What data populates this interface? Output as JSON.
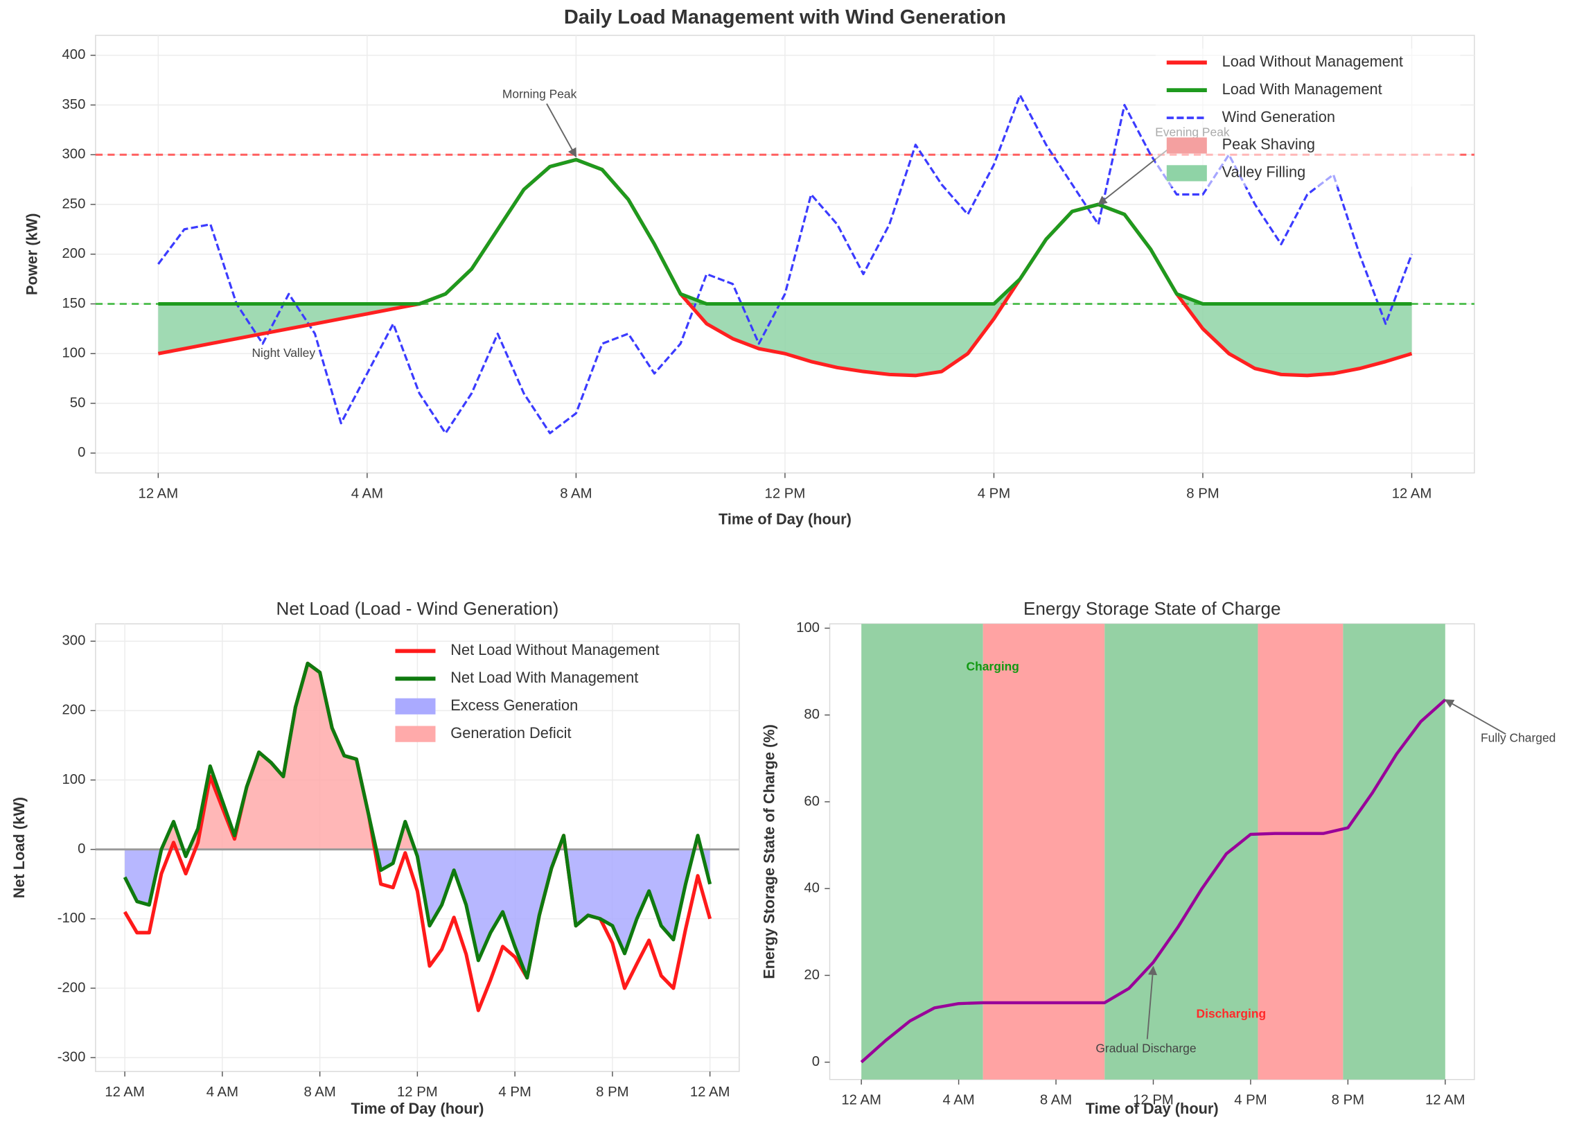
{
  "chart_data": [
    {
      "type": "line",
      "title": "Daily Load Management with Wind Generation",
      "xlabel": "Time of Day (hour)",
      "ylabel": "Power (kW)",
      "x": [
        0,
        0.5,
        1,
        1.5,
        2,
        2.5,
        3,
        3.5,
        4,
        4.5,
        5,
        5.5,
        6,
        6.5,
        7,
        7.5,
        8,
        8.5,
        9,
        9.5,
        10,
        10.5,
        11,
        11.5,
        12,
        12.5,
        13,
        13.5,
        14,
        14.5,
        15,
        15.5,
        16,
        16.5,
        17,
        17.5,
        18,
        18.5,
        19,
        19.5,
        20,
        20.5,
        21,
        21.5,
        22,
        22.5,
        23,
        23.5,
        24
      ],
      "xlim": [
        -1.2,
        25.2
      ],
      "xticks": [
        {
          "value": 0,
          "label": "12 AM"
        },
        {
          "value": 4,
          "label": "4 AM"
        },
        {
          "value": 8,
          "label": "8 AM"
        },
        {
          "value": 12,
          "label": "12 PM"
        },
        {
          "value": 16,
          "label": "4 PM"
        },
        {
          "value": 20,
          "label": "8 PM"
        },
        {
          "value": 24,
          "label": "12 AM"
        }
      ],
      "ylim": [
        -20,
        420
      ],
      "yticks": [
        0,
        50,
        100,
        150,
        200,
        250,
        300,
        350,
        400
      ],
      "grid": true,
      "legend": "upper right",
      "series": [
        {
          "name": "Load Without Management",
          "color": "#ff2020",
          "values": [
            100,
            105,
            110,
            115,
            120,
            125,
            130,
            135,
            140,
            145,
            150,
            160,
            185,
            225,
            265,
            288,
            295,
            285,
            255,
            210,
            160,
            130,
            115,
            105,
            100,
            92,
            86,
            82,
            79,
            78,
            82,
            100,
            135,
            175,
            215,
            243,
            250,
            240,
            205,
            160,
            125,
            100,
            85,
            79,
            78,
            80,
            85,
            92,
            100
          ]
        },
        {
          "name": "Load With Management",
          "color": "#1e9a1e",
          "values": [
            150,
            150,
            150,
            150,
            150,
            150,
            150,
            150,
            150,
            150,
            150,
            160,
            185,
            225,
            265,
            288,
            295,
            285,
            255,
            210,
            160,
            150,
            150,
            150,
            150,
            150,
            150,
            150,
            150,
            150,
            150,
            150,
            150,
            175,
            215,
            243,
            250,
            240,
            205,
            160,
            150,
            150,
            150,
            150,
            150,
            150,
            150,
            150,
            150
          ]
        },
        {
          "name": "Wind Generation",
          "color": "#3b3bff",
          "dash": true,
          "values": [
            190,
            225,
            230,
            150,
            110,
            160,
            120,
            30,
            80,
            130,
            60,
            20,
            60,
            120,
            60,
            20,
            40,
            110,
            120,
            80,
            110,
            180,
            170,
            110,
            160,
            260,
            230,
            180,
            230,
            310,
            270,
            240,
            290,
            360,
            310,
            270,
            230,
            350,
            300,
            260,
            260,
            300,
            250,
            210,
            260,
            280,
            200,
            130,
            200
          ]
        }
      ],
      "fills": [
        {
          "name": "Peak Shaving",
          "color": "#f4a0a0"
        },
        {
          "name": "Valley Filling",
          "color": "#8fd3a6"
        }
      ],
      "hlines": [
        {
          "value": 300,
          "color": "#ff6060",
          "dash": true
        },
        {
          "value": 150,
          "color": "#55c055",
          "dash": true
        }
      ],
      "annotations": [
        {
          "text": "Morning Peak",
          "x": 8,
          "y": 298,
          "text_x": 7.3,
          "text_y": 360
        },
        {
          "text": "Night Valley",
          "text_x": 2.4,
          "text_y": 100
        },
        {
          "text": "Evening Peak",
          "x": 18,
          "y": 250,
          "text_x": 19.8,
          "text_y": 322
        }
      ]
    },
    {
      "type": "line",
      "title": "Net Load (Load - Wind Generation)",
      "xlabel": "Time of Day (hour)",
      "ylabel": "Net Load (kW)",
      "x": [
        0,
        0.5,
        1,
        1.5,
        2,
        2.5,
        3,
        3.5,
        4,
        4.5,
        5,
        5.5,
        6,
        6.5,
        7,
        7.5,
        8,
        8.5,
        9,
        9.5,
        10,
        10.5,
        11,
        11.5,
        12,
        12.5,
        13,
        13.5,
        14,
        14.5,
        15,
        15.5,
        16,
        16.5,
        17,
        17.5,
        18,
        18.5,
        19,
        19.5,
        20,
        20.5,
        21,
        21.5,
        22,
        22.5,
        23,
        23.5,
        24
      ],
      "xlim": [
        -1.2,
        25.2
      ],
      "xticks": [
        {
          "value": 0,
          "label": "12 AM"
        },
        {
          "value": 4,
          "label": "4 AM"
        },
        {
          "value": 8,
          "label": "8 AM"
        },
        {
          "value": 12,
          "label": "12 PM"
        },
        {
          "value": 16,
          "label": "4 PM"
        },
        {
          "value": 20,
          "label": "8 PM"
        },
        {
          "value": 24,
          "label": "12 AM"
        }
      ],
      "ylim": [
        -320,
        325
      ],
      "yticks": [
        -300,
        -200,
        -100,
        0,
        100,
        200,
        300
      ],
      "grid": true,
      "legend": "upper right",
      "series": [
        {
          "name": "Net Load Without Management",
          "color": "#ff1a1a",
          "values": [
            -90,
            -120,
            -120,
            -35,
            10,
            -35,
            10,
            105,
            60,
            15,
            90,
            140,
            125,
            105,
            205,
            268,
            255,
            175,
            135,
            130,
            50,
            -50,
            -55,
            -5,
            -60,
            -168,
            -144,
            -98,
            -151,
            -232,
            -188,
            -140,
            -155,
            -185,
            -95,
            -27,
            20,
            -110,
            -95,
            -100,
            -135,
            -200,
            -165,
            -131,
            -182,
            -200,
            -115,
            -38,
            -100
          ]
        },
        {
          "name": "Net Load With Management",
          "color": "#0f7a0f",
          "values": [
            -40,
            -75,
            -80,
            0,
            40,
            -10,
            30,
            120,
            70,
            20,
            90,
            140,
            125,
            105,
            205,
            268,
            255,
            175,
            135,
            130,
            50,
            -30,
            -20,
            40,
            -10,
            -110,
            -80,
            -30,
            -80,
            -160,
            -120,
            -90,
            -140,
            -185,
            -95,
            -27,
            20,
            -110,
            -95,
            -100,
            -110,
            -150,
            -100,
            -60,
            -110,
            -130,
            -50,
            20,
            -50
          ]
        }
      ],
      "fills": [
        {
          "name": "Excess Generation",
          "color": "#aaaaff"
        },
        {
          "name": "Generation Deficit",
          "color": "#ffaaaa"
        }
      ],
      "hlines": [
        {
          "value": 0,
          "color": "#999999"
        }
      ]
    },
    {
      "type": "line",
      "title": "Energy Storage State of Charge",
      "xlabel": "Time of Day (hour)",
      "ylabel": "Energy Storage State of Charge (%)",
      "x": [
        0,
        1,
        2,
        3,
        4,
        5,
        6,
        7,
        8,
        9,
        10,
        11,
        12,
        13,
        14,
        15,
        16,
        17,
        18,
        19,
        20,
        21,
        22,
        23,
        24
      ],
      "xlim": [
        -1.3,
        25.2
      ],
      "xticks": [
        {
          "value": 0,
          "label": "12 AM"
        },
        {
          "value": 4,
          "label": "4 AM"
        },
        {
          "value": 8,
          "label": "8 AM"
        },
        {
          "value": 12,
          "label": "12 PM"
        },
        {
          "value": 16,
          "label": "4 PM"
        },
        {
          "value": 20,
          "label": "8 PM"
        },
        {
          "value": 24,
          "label": "12 AM"
        }
      ],
      "ylim": [
        -4,
        101
      ],
      "yticks": [
        0,
        20,
        40,
        60,
        80,
        100
      ],
      "grid": true,
      "bands": [
        {
          "start": 0,
          "end": 5,
          "color": "#8fcf9f"
        },
        {
          "start": 5,
          "end": 10,
          "color": "#ff9e9e"
        },
        {
          "start": 10,
          "end": 16.3,
          "color": "#8fcf9f"
        },
        {
          "start": 16.3,
          "end": 19.8,
          "color": "#ff9e9e"
        },
        {
          "start": 19.8,
          "end": 24,
          "color": "#8fcf9f"
        }
      ],
      "series": [
        {
          "color": "#990099",
          "values": [
            0,
            5,
            9.5,
            12.5,
            13.5,
            13.7,
            13.7,
            13.7,
            13.7,
            13.7,
            13.7,
            17,
            23,
            31,
            40,
            48,
            52.5,
            52.7,
            52.7,
            52.7,
            54,
            62,
            71,
            78.5,
            83.5
          ]
        }
      ],
      "annotations": [
        {
          "text": "Charging",
          "text_x": 5.4,
          "text_y": 91,
          "color": "#119911",
          "weight": "bold"
        },
        {
          "text": "Discharging",
          "text_x": 15.2,
          "text_y": 11,
          "color": "#ff2a2a",
          "weight": "bold"
        },
        {
          "text": "Gradual Discharge",
          "x": 12,
          "y": 22,
          "text_x": 11.7,
          "text_y": 3
        },
        {
          "text": "Fully Charged",
          "x": 24,
          "y": 83.5,
          "text_x": 27,
          "text_y": 74.5
        }
      ]
    }
  ]
}
